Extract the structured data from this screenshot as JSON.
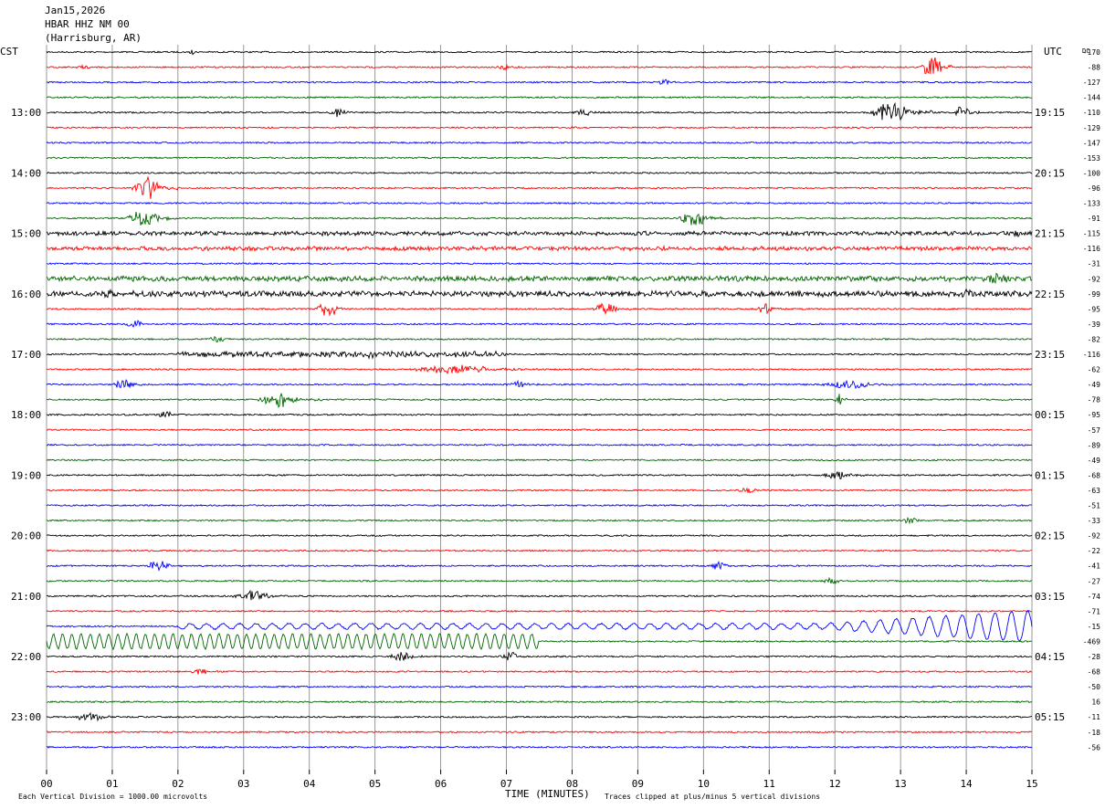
{
  "header": {
    "date": "Jan15,2026",
    "station": "HBAR HHZ NM 00",
    "location": "(Harrisburg, AR)"
  },
  "left_zone_label": "CST",
  "right_zone_label": "UTC",
  "dc_label": "DC",
  "footer": {
    "scale_note": "Each Vertical Division = 1000.00 microvolts",
    "xlabel": "TIME (MINUTES)",
    "clip_note": "Traces clipped at plus/minus 5 vertical divisions"
  },
  "colors": {
    "trace_cycle": [
      "#000000",
      "#ff0000",
      "#0000ff",
      "#006400"
    ],
    "grid": "#808080",
    "text": "#000000"
  },
  "chart_data": {
    "type": "line",
    "xlim": [
      0,
      15
    ],
    "x_ticks": [
      "00",
      "01",
      "02",
      "03",
      "04",
      "05",
      "06",
      "07",
      "08",
      "09",
      "10",
      "11",
      "12",
      "13",
      "14",
      "15"
    ],
    "trace_count": 47,
    "left_hour_labels": [
      {
        "row": 4,
        "label": "13:00"
      },
      {
        "row": 8,
        "label": "14:00"
      },
      {
        "row": 12,
        "label": "15:00"
      },
      {
        "row": 16,
        "label": "16:00"
      },
      {
        "row": 20,
        "label": "17:00"
      },
      {
        "row": 24,
        "label": "18:00"
      },
      {
        "row": 28,
        "label": "19:00"
      },
      {
        "row": 32,
        "label": "20:00"
      },
      {
        "row": 36,
        "label": "21:00"
      },
      {
        "row": 40,
        "label": "22:00"
      },
      {
        "row": 44,
        "label": "23:00"
      }
    ],
    "right_hour_labels": [
      {
        "row": 4,
        "label": "19:15"
      },
      {
        "row": 8,
        "label": "20:15"
      },
      {
        "row": 12,
        "label": "21:15"
      },
      {
        "row": 16,
        "label": "22:15"
      },
      {
        "row": 20,
        "label": "23:15"
      },
      {
        "row": 24,
        "label": "00:15"
      },
      {
        "row": 28,
        "label": "01:15"
      },
      {
        "row": 32,
        "label": "02:15"
      },
      {
        "row": 36,
        "label": "03:15"
      },
      {
        "row": 40,
        "label": "04:15"
      },
      {
        "row": 44,
        "label": "05:15"
      }
    ],
    "dc_offsets": [
      "-170",
      "-88",
      "-127",
      "-144",
      "-110",
      "-129",
      "-147",
      "-153",
      "-100",
      "-96",
      "-133",
      "-91",
      "-115",
      "-116",
      "-31",
      "-92",
      "-99",
      "-95",
      "-39",
      "-82",
      "-116",
      "-62",
      "-49",
      "-78",
      "-95",
      "-57",
      "-89",
      "-49",
      "-68",
      "-63",
      "-51",
      "-33",
      "-92",
      "-22",
      "-41",
      "-27",
      "-74",
      "-71",
      "-15",
      "-469",
      "-28",
      "-68",
      "-50",
      "16",
      "-11",
      "-18",
      "-56"
    ],
    "events": [
      {
        "row": 0,
        "start": 2.15,
        "end": 2.3,
        "amp": 1.2
      },
      {
        "row": 1,
        "start": 0.45,
        "end": 0.8,
        "amp": 1.2
      },
      {
        "row": 1,
        "start": 6.8,
        "end": 7.2,
        "amp": 1.0
      },
      {
        "row": 1,
        "start": 13.3,
        "end": 13.8,
        "amp": 4.0
      },
      {
        "row": 2,
        "start": 9.3,
        "end": 9.6,
        "amp": 1.0
      },
      {
        "row": 4,
        "start": 4.3,
        "end": 4.7,
        "amp": 1.8
      },
      {
        "row": 4,
        "start": 8.0,
        "end": 8.6,
        "amp": 1.0
      },
      {
        "row": 4,
        "start": 12.5,
        "end": 13.5,
        "amp": 3.5
      },
      {
        "row": 4,
        "start": 13.8,
        "end": 14.2,
        "amp": 2.2
      },
      {
        "row": 9,
        "start": 1.3,
        "end": 2.0,
        "amp": 4.5
      },
      {
        "row": 11,
        "start": 1.2,
        "end": 2.0,
        "amp": 3.2
      },
      {
        "row": 11,
        "start": 9.6,
        "end": 10.3,
        "amp": 3.0
      },
      {
        "row": 12,
        "start": 0.0,
        "end": 15.0,
        "amp": 0.6
      },
      {
        "row": 12,
        "start": 14.6,
        "end": 15.0,
        "amp": 1.2
      },
      {
        "row": 13,
        "start": 0.0,
        "end": 15.0,
        "amp": 0.6
      },
      {
        "row": 15,
        "start": 0.0,
        "end": 15.0,
        "amp": 0.8
      },
      {
        "row": 15,
        "start": 14.2,
        "end": 15.0,
        "amp": 2.0
      },
      {
        "row": 16,
        "start": 0.0,
        "end": 15.0,
        "amp": 0.9
      },
      {
        "row": 16,
        "start": 0.8,
        "end": 1.2,
        "amp": 1.6
      },
      {
        "row": 16,
        "start": 13.8,
        "end": 14.3,
        "amp": 1.6
      },
      {
        "row": 17,
        "start": 4.1,
        "end": 4.6,
        "amp": 3.0
      },
      {
        "row": 17,
        "start": 8.3,
        "end": 8.9,
        "amp": 2.0
      },
      {
        "row": 17,
        "start": 10.8,
        "end": 11.2,
        "amp": 2.0
      },
      {
        "row": 18,
        "start": 1.2,
        "end": 1.6,
        "amp": 1.2
      },
      {
        "row": 19,
        "start": 2.4,
        "end": 2.9,
        "amp": 1.2
      },
      {
        "row": 20,
        "start": 2.0,
        "end": 7.0,
        "amp": 0.9
      },
      {
        "row": 20,
        "start": 4.8,
        "end": 5.2,
        "amp": 1.8
      },
      {
        "row": 21,
        "start": 5.5,
        "end": 7.5,
        "amp": 1.5
      },
      {
        "row": 22,
        "start": 1.0,
        "end": 1.5,
        "amp": 1.8
      },
      {
        "row": 22,
        "start": 7.0,
        "end": 7.5,
        "amp": 1.2
      },
      {
        "row": 22,
        "start": 11.8,
        "end": 13.0,
        "amp": 1.4
      },
      {
        "row": 23,
        "start": 3.2,
        "end": 4.2,
        "amp": 2.5
      },
      {
        "row": 23,
        "start": 12.0,
        "end": 12.2,
        "amp": 2.0
      },
      {
        "row": 24,
        "start": 1.7,
        "end": 2.0,
        "amp": 1.4
      },
      {
        "row": 28,
        "start": 11.8,
        "end": 12.5,
        "amp": 1.2
      },
      {
        "row": 29,
        "start": 10.5,
        "end": 11.0,
        "amp": 1.0
      },
      {
        "row": 31,
        "start": 13.0,
        "end": 13.5,
        "amp": 1.2
      },
      {
        "row": 34,
        "start": 1.5,
        "end": 2.1,
        "amp": 1.8
      },
      {
        "row": 34,
        "start": 10.1,
        "end": 10.5,
        "amp": 1.4
      },
      {
        "row": 35,
        "start": 11.8,
        "end": 12.2,
        "amp": 1.0
      },
      {
        "row": 36,
        "start": 2.8,
        "end": 3.7,
        "amp": 1.8
      },
      {
        "row": 40,
        "start": 5.2,
        "end": 5.8,
        "amp": 1.6
      },
      {
        "row": 40,
        "start": 6.9,
        "end": 7.3,
        "amp": 1.8
      },
      {
        "row": 41,
        "start": 2.2,
        "end": 2.6,
        "amp": 1.2
      },
      {
        "row": 44,
        "start": 0.4,
        "end": 1.1,
        "amp": 1.6
      }
    ],
    "long_period": [
      {
        "row": 38,
        "start": 2.0,
        "end": 15.0,
        "amp": 0.6,
        "period_min": 0.25,
        "surge_start": 11.8,
        "surge_amp": 3.5
      },
      {
        "row": 39,
        "start": 0.0,
        "end": 7.5,
        "amp": 1.6,
        "period_min": 0.14
      }
    ]
  }
}
